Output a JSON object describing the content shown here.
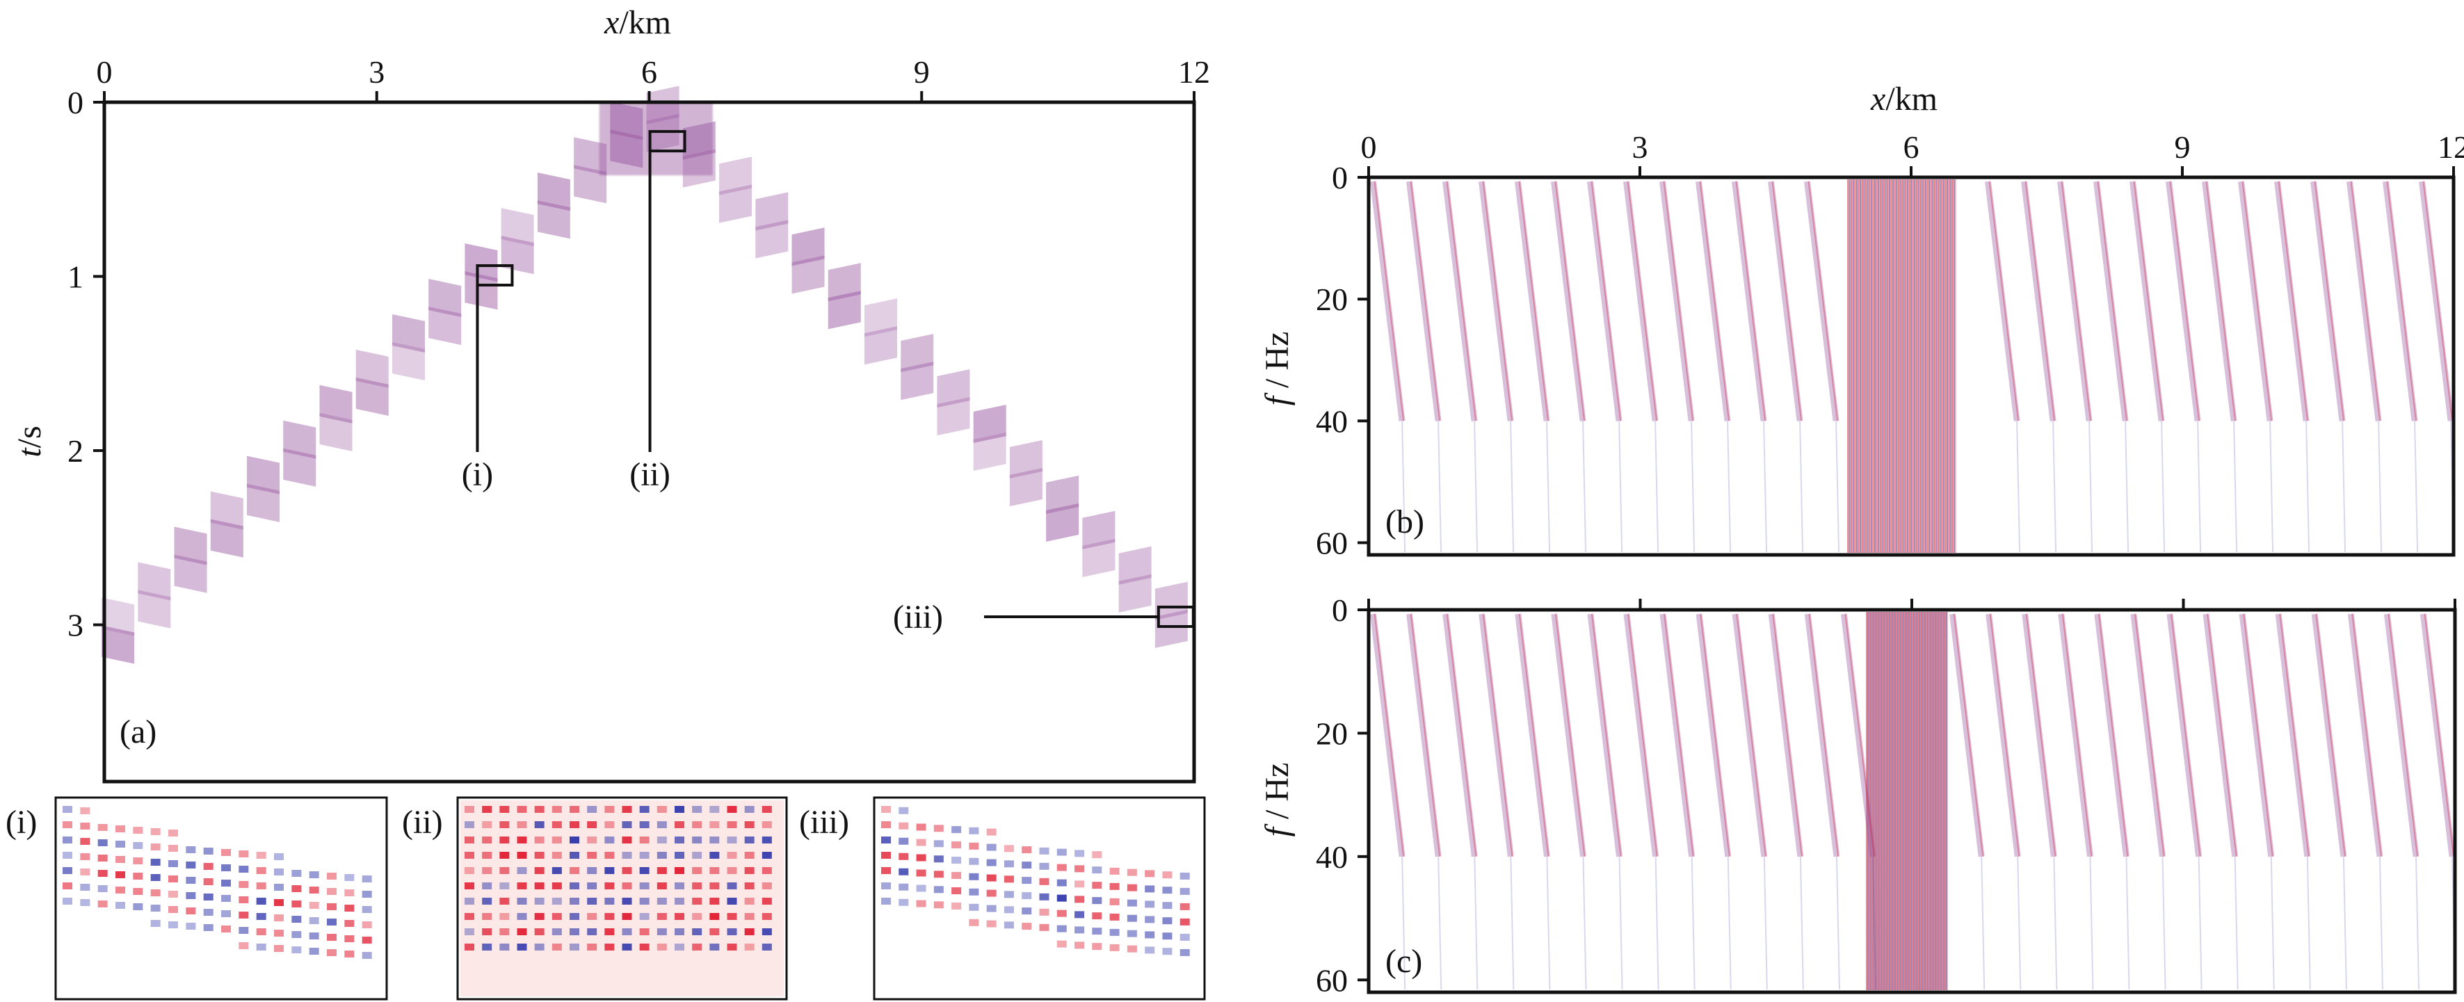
{
  "colors": {
    "envelope": "#9a5aa2",
    "positive": "#e0182c",
    "negative": "#2830a8",
    "overlap": "#f2a6a0",
    "frame": "#111111"
  },
  "chart_data": [
    {
      "id": "a",
      "type": "heatmap",
      "panel_label": "(a)",
      "xlabel_var": "x",
      "xlabel_unit": "/km",
      "ylabel_var": "t",
      "ylabel_unit": "/s",
      "xlim": [
        0,
        12
      ],
      "ylim": [
        0,
        3.9
      ],
      "xticks": [
        "0",
        "3",
        "6",
        "9",
        "12"
      ],
      "yticks": [
        "0",
        "1",
        "2",
        "3"
      ],
      "grid": false,
      "event_apex": {
        "x": 6,
        "t": 0.05
      },
      "event_ends": {
        "x0": 0,
        "t_left": 3.1,
        "x1": 12,
        "t_right": 3.1
      },
      "callouts": [
        {
          "label": "(i)",
          "x": 4.2,
          "t": 0.97
        },
        {
          "label": "(ii)",
          "x": 6.1,
          "t": 0.2
        },
        {
          "label": "(iii)",
          "x": 11.7,
          "t": 2.93
        }
      ]
    },
    {
      "id": "b",
      "type": "heatmap",
      "panel_label": "(b)",
      "xlabel_var": "x",
      "xlabel_unit": "/km",
      "ylabel_var": "f",
      "ylabel_unit": " / Hz",
      "xlim": [
        0,
        12
      ],
      "ylim": [
        0,
        62
      ],
      "xticks": [
        "0",
        "3",
        "6",
        "9",
        "12"
      ],
      "yticks": [
        "0",
        "20",
        "40",
        "60"
      ],
      "grid": false,
      "trace_spacing_km": 0.4,
      "dense_zone_km": [
        5.3,
        6.5
      ]
    },
    {
      "id": "c",
      "type": "heatmap",
      "panel_label": "(c)",
      "xlim": [
        0,
        12
      ],
      "ylim": [
        0,
        62
      ],
      "xticks": [
        "",
        "",
        "",
        "",
        ""
      ],
      "ylabel_var": "f",
      "ylabel_unit": " / Hz",
      "yticks": [
        "0",
        "20",
        "40",
        "60"
      ],
      "grid": false,
      "trace_spacing_km": 0.4,
      "dense_zone_km": [
        5.5,
        6.4
      ]
    }
  ],
  "insets": [
    {
      "label": "(i)"
    },
    {
      "label": "(ii)"
    },
    {
      "label": "(iii)"
    }
  ]
}
